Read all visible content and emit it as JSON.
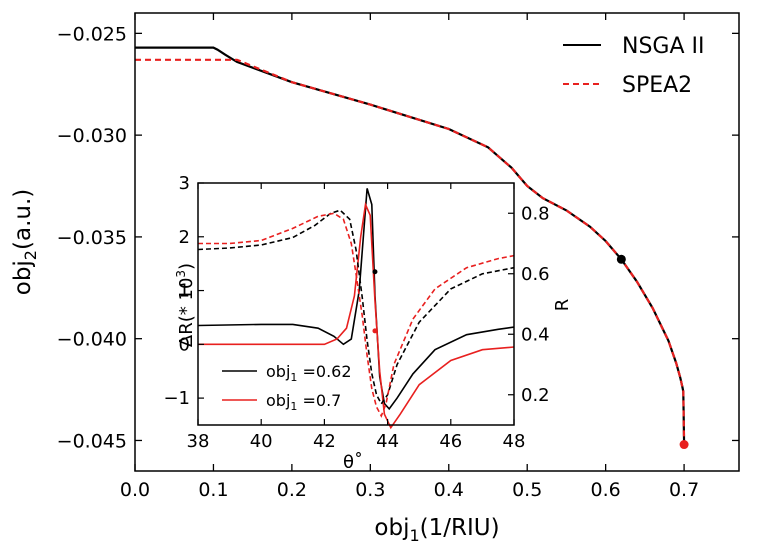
{
  "chart_data": [
    {
      "type": "line",
      "title": "",
      "xlabel": "obj",
      "xlabel_sub": "1",
      "xlabel_unit": "(1/RIU)",
      "ylabel": "obj",
      "ylabel_sub": "2",
      "ylabel_unit": "(a.u.)",
      "xlim": [
        0.0,
        0.77
      ],
      "ylim": [
        -0.0465,
        -0.024
      ],
      "xticks": [
        0.0,
        0.1,
        0.2,
        0.3,
        0.4,
        0.5,
        0.6,
        0.7
      ],
      "xtick_labels": [
        "0.0",
        "0.1",
        "0.2",
        "0.3",
        "0.4",
        "0.5",
        "0.6",
        "0.7"
      ],
      "yticks": [
        -0.025,
        -0.03,
        -0.035,
        -0.04,
        -0.045
      ],
      "ytick_labels": [
        "−0.025",
        "−0.030",
        "−0.035",
        "−0.040",
        "−0.045"
      ],
      "legend_position": "top-right",
      "series": [
        {
          "name": "NSGA II",
          "color": "#000000",
          "style": "solid",
          "x": [
            0.0,
            0.1,
            0.105,
            0.115,
            0.13,
            0.2,
            0.3,
            0.4,
            0.45,
            0.48,
            0.5,
            0.52,
            0.55,
            0.58,
            0.6,
            0.62,
            0.64,
            0.66,
            0.68,
            0.69,
            0.695,
            0.698,
            0.699,
            0.7
          ],
          "y": [
            -0.0257,
            -0.0257,
            -0.0258,
            -0.02605,
            -0.0264,
            -0.0274,
            -0.0285,
            -0.0297,
            -0.0306,
            -0.0316,
            -0.0325,
            -0.0331,
            -0.0337,
            -0.0345,
            -0.0352,
            -0.0361,
            -0.0372,
            -0.0385,
            -0.0401,
            -0.0412,
            -0.0419,
            -0.0424,
            -0.0426,
            -0.0452
          ]
        },
        {
          "name": "SPEA2",
          "color": "#e8201f",
          "style": "dashed",
          "x": [
            0.0,
            0.1,
            0.13,
            0.2,
            0.3,
            0.4,
            0.45,
            0.48,
            0.5,
            0.52,
            0.55,
            0.58,
            0.6,
            0.62,
            0.64,
            0.66,
            0.68,
            0.69,
            0.695,
            0.698,
            0.699,
            0.7
          ],
          "y": [
            -0.0263,
            -0.0263,
            -0.0263,
            -0.0274,
            -0.0285,
            -0.0297,
            -0.0306,
            -0.0316,
            -0.0325,
            -0.0331,
            -0.0337,
            -0.0345,
            -0.0352,
            -0.0361,
            -0.0372,
            -0.0385,
            -0.0401,
            -0.0412,
            -0.0419,
            -0.0424,
            -0.0426,
            -0.0452
          ]
        }
      ],
      "markers": [
        {
          "x": 0.62,
          "y": -0.0361,
          "color": "#000000"
        },
        {
          "x": 0.7,
          "y": -0.0452,
          "color": "#e8201f"
        }
      ]
    },
    {
      "type": "line",
      "title": "",
      "xlabel": "θ˚",
      "ylabel_left": "ΔR(* 10",
      "ylabel_left_sup": "3",
      "ylabel_left_end": ")",
      "ylabel_right": "R",
      "xlim": [
        38,
        48
      ],
      "ylim_left": [
        -1.5,
        3
      ],
      "ylim_right": [
        0.1,
        0.9
      ],
      "xticks": [
        38,
        40,
        42,
        44,
        46,
        48
      ],
      "xtick_labels": [
        "38",
        "40",
        "42",
        "44",
        "46",
        "48"
      ],
      "yticks_left": [
        -1,
        0,
        1,
        2,
        3
      ],
      "ytick_labels_left": [
        "−1",
        "0",
        "1",
        "2",
        "3"
      ],
      "yticks_right": [
        0.2,
        0.4,
        0.6,
        0.8
      ],
      "ytick_labels_right": [
        "0.2",
        "0.4",
        "0.6",
        "0.8"
      ],
      "legend_position": "bottom-left",
      "legend": [
        {
          "label": "obj",
          "sub": "1",
          "value": "=0.62",
          "color": "#000000"
        },
        {
          "label": "obj",
          "sub": "1",
          "value": "=0.7",
          "color": "#e8201f"
        }
      ],
      "series": [
        {
          "name": "ΔR obj1=0.62",
          "axis": "left",
          "color": "#000000",
          "style": "solid",
          "x": [
            38,
            40,
            41,
            41.8,
            42.3,
            42.6,
            42.85,
            43.1,
            43.35,
            43.5,
            43.6,
            43.75,
            43.9,
            44.05,
            44.3,
            44.8,
            45.5,
            46.5,
            47.5,
            48
          ],
          "y": [
            0.35,
            0.37,
            0.37,
            0.3,
            0.15,
            0.0,
            0.1,
            1.0,
            2.9,
            2.6,
            0.9,
            -0.6,
            -1.1,
            -1.2,
            -1.0,
            -0.55,
            -0.1,
            0.18,
            0.28,
            0.32
          ]
        },
        {
          "name": "ΔR obj1=0.7",
          "axis": "left",
          "color": "#e8201f",
          "style": "solid",
          "x": [
            38,
            40,
            41,
            42,
            42.4,
            42.7,
            42.95,
            43.15,
            43.3,
            43.45,
            43.6,
            43.75,
            43.9,
            44.1,
            44.4,
            45,
            46,
            47,
            48
          ],
          "y": [
            0.0,
            0.0,
            0.0,
            0.0,
            0.1,
            0.3,
            0.9,
            2.0,
            2.6,
            2.4,
            0.8,
            -0.5,
            -1.3,
            -1.55,
            -1.3,
            -0.75,
            -0.3,
            -0.1,
            -0.05
          ]
        },
        {
          "name": "R obj1=0.62",
          "axis": "right",
          "color": "#000000",
          "style": "dashed",
          "x": [
            38,
            39,
            40,
            41,
            41.7,
            42.2,
            42.5,
            42.8,
            43.0,
            43.2,
            43.35,
            43.5,
            43.65,
            43.8,
            44.0,
            44.3,
            45,
            46,
            47,
            48
          ],
          "y": [
            0.68,
            0.685,
            0.695,
            0.72,
            0.76,
            0.8,
            0.81,
            0.78,
            0.68,
            0.52,
            0.38,
            0.27,
            0.2,
            0.17,
            0.2,
            0.3,
            0.44,
            0.55,
            0.6,
            0.62
          ]
        },
        {
          "name": "R obj1=0.7",
          "axis": "right",
          "color": "#e8201f",
          "style": "dashed",
          "x": [
            38,
            39,
            40,
            41,
            41.8,
            42.3,
            42.6,
            42.85,
            43.0,
            43.2,
            43.35,
            43.5,
            43.65,
            43.8,
            43.95,
            44.2,
            44.8,
            45.5,
            46.5,
            47.5,
            48
          ],
          "y": [
            0.7,
            0.7,
            0.71,
            0.75,
            0.79,
            0.8,
            0.78,
            0.7,
            0.6,
            0.46,
            0.33,
            0.22,
            0.16,
            0.13,
            0.17,
            0.3,
            0.45,
            0.55,
            0.62,
            0.65,
            0.66
          ]
        }
      ],
      "markers": [
        {
          "x": 43.6,
          "y": 1.35,
          "color": "#000000"
        },
        {
          "x": 43.6,
          "y": 0.25,
          "color": "#e8201f"
        }
      ]
    }
  ]
}
